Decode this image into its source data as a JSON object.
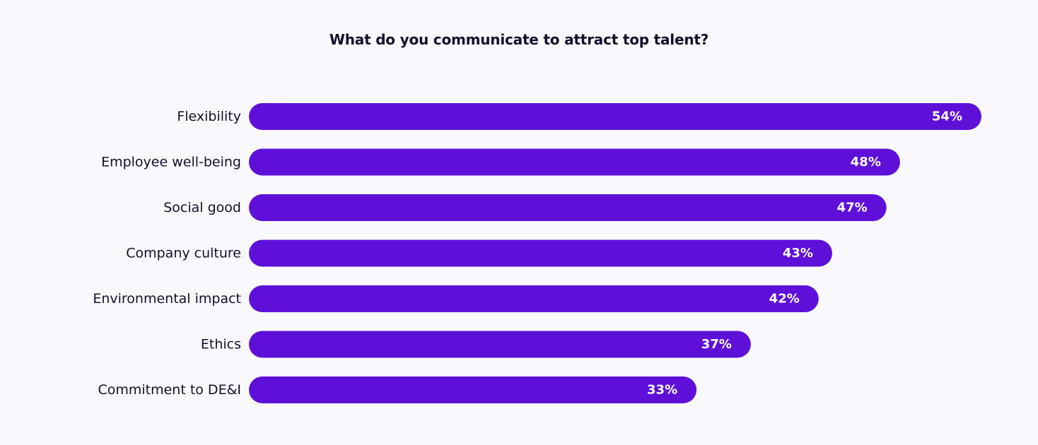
{
  "chart_data": {
    "type": "bar",
    "orientation": "horizontal",
    "title": "What do you communicate to attract top talent?",
    "categories": [
      "Flexibility",
      "Employee well-being",
      "Social good",
      "Company culture",
      "Environmental impact",
      "Ethics",
      "Commitment to DE&I"
    ],
    "values": [
      54,
      48,
      47,
      43,
      42,
      37,
      33
    ],
    "value_labels": [
      "54%",
      "48%",
      "47%",
      "43%",
      "42%",
      "37%",
      "33%"
    ],
    "unit": "%",
    "xlabel": "",
    "ylabel": "",
    "grid": false,
    "legend": "none",
    "bar_color": "#5e10d9",
    "background_color": "#f9f9fd",
    "label_color": "#14102b",
    "value_label_color": "#ffffff"
  }
}
